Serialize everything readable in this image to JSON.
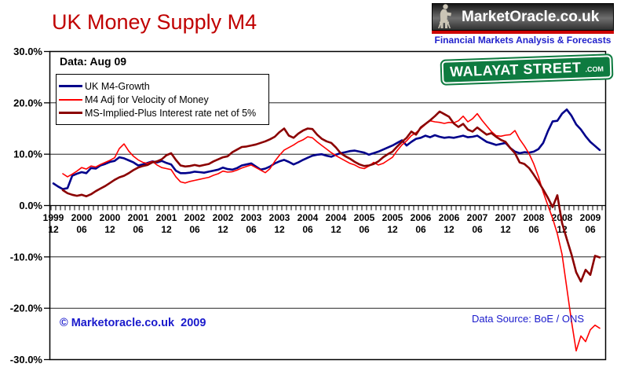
{
  "page": {
    "title": "UK Money Supply M4",
    "data_note": "Data: Aug 09",
    "copyright": "© Marketoracle.co.uk  2009",
    "data_source": "Data Source: BoE / ONS"
  },
  "logo": {
    "site": "MarketOracle.co.uk",
    "tagline": "Financial Markets Analysis & Forecasts",
    "figure_icon": "seated-oracle-statue-icon"
  },
  "street_sign": {
    "name": "WALAYAT STREET",
    "tld": ".com"
  },
  "colors": {
    "title": "#C00000",
    "logo_bar": "#CC0000",
    "tagline": "#2222CC",
    "sign_green": "#0E7B40",
    "link_blue": "#1A1ACC",
    "axis_black": "#000000"
  },
  "chart_data": {
    "type": "line",
    "title": "UK Money Supply M4",
    "xlabel": "",
    "ylabel": "",
    "x_start": "1999-12",
    "x_end": "2009-08",
    "x_interval": "monthly",
    "ylim": [
      -30,
      30
    ],
    "grid": "horizontal-every-10pct",
    "legend_position": "top-left",
    "y_ticks": [
      "30.0%",
      "20.0%",
      "10.0%",
      "0.0%",
      "-10.0%",
      "-20.0%",
      "-30.0%"
    ],
    "y_tick_values": [
      30,
      20,
      10,
      0,
      -10,
      -20,
      -30
    ],
    "x_tick_labels": [
      [
        "1999",
        "12"
      ],
      [
        "2000",
        "06"
      ],
      [
        "2000",
        "12"
      ],
      [
        "2001",
        "06"
      ],
      [
        "2001",
        "12"
      ],
      [
        "2002",
        "06"
      ],
      [
        "2002",
        "12"
      ],
      [
        "2003",
        "06"
      ],
      [
        "2003",
        "12"
      ],
      [
        "2004",
        "06"
      ],
      [
        "2004",
        "12"
      ],
      [
        "2005",
        "06"
      ],
      [
        "2005",
        "12"
      ],
      [
        "2006",
        "06"
      ],
      [
        "2006",
        "12"
      ],
      [
        "2007",
        "06"
      ],
      [
        "2007",
        "12"
      ],
      [
        "2008",
        "06"
      ],
      [
        "2008",
        "12"
      ],
      [
        "2009",
        "06"
      ]
    ],
    "series": [
      {
        "name": "UK M4-Growth",
        "color": "#00008B",
        "width": 2.6,
        "values": [
          4.3,
          3.7,
          3.2,
          3.4,
          5.8,
          6.2,
          6.5,
          6.3,
          7.3,
          7.2,
          7.8,
          8.1,
          8.5,
          8.7,
          9.4,
          9.2,
          8.8,
          8.4,
          7.8,
          8.0,
          8.3,
          8.6,
          8.4,
          8.7,
          8.3,
          8.0,
          6.8,
          6.3,
          6.3,
          6.4,
          6.6,
          6.5,
          6.4,
          6.6,
          6.8,
          7.0,
          7.4,
          7.1,
          7.0,
          7.3,
          7.8,
          8.0,
          8.2,
          7.6,
          7.0,
          7.2,
          7.6,
          8.2,
          8.6,
          8.9,
          8.5,
          8.0,
          8.4,
          8.9,
          9.3,
          9.7,
          9.9,
          10.0,
          9.7,
          9.5,
          9.9,
          10.2,
          10.4,
          10.6,
          10.7,
          10.5,
          10.3,
          9.9,
          10.2,
          10.5,
          10.9,
          11.3,
          11.7,
          12.2,
          12.7,
          11.7,
          12.4,
          13.0,
          13.2,
          13.6,
          13.3,
          13.7,
          13.4,
          13.2,
          13.3,
          13.2,
          13.4,
          13.6,
          13.3,
          13.4,
          13.6,
          13.0,
          12.4,
          12.1,
          11.8,
          12.0,
          12.2,
          11.2,
          10.5,
          10.2,
          10.4,
          10.3,
          10.5,
          11.0,
          12.2,
          14.5,
          16.4,
          16.5,
          17.9,
          18.7,
          17.5,
          15.8,
          14.8,
          13.5,
          12.4,
          11.6,
          10.8
        ]
      },
      {
        "name": "M4 Adj for Velocity of Money",
        "color": "#FF0000",
        "width": 1.6,
        "values": [
          null,
          null,
          6.2,
          5.6,
          6.1,
          6.7,
          7.4,
          7.1,
          7.7,
          7.5,
          8.0,
          8.4,
          8.8,
          9.3,
          11.1,
          12.0,
          10.6,
          9.6,
          8.9,
          8.4,
          8.2,
          8.6,
          7.9,
          7.4,
          7.2,
          7.0,
          5.6,
          4.6,
          4.4,
          4.7,
          4.9,
          5.1,
          5.3,
          5.5,
          5.9,
          6.2,
          6.7,
          6.5,
          6.6,
          6.9,
          7.3,
          7.6,
          7.9,
          7.4,
          6.9,
          6.4,
          7.2,
          8.6,
          9.8,
          10.8,
          11.3,
          11.8,
          12.4,
          12.8,
          13.4,
          13.2,
          12.4,
          11.7,
          11.0,
          10.3,
          9.7,
          9.2,
          8.7,
          8.2,
          7.9,
          7.4,
          7.2,
          7.7,
          8.4,
          7.9,
          8.2,
          8.8,
          9.4,
          10.7,
          11.8,
          12.6,
          13.6,
          14.2,
          15.0,
          15.8,
          16.5,
          16.3,
          16.2,
          16.0,
          16.2,
          16.1,
          16.5,
          17.4,
          16.3,
          16.9,
          17.9,
          16.6,
          15.5,
          14.4,
          13.6,
          13.5,
          13.7,
          13.8,
          14.6,
          12.9,
          11.6,
          10.1,
          8.1,
          5.6,
          2.6,
          0.0,
          -2.5,
          -5.5,
          -9.5,
          -16.0,
          -22.5,
          -28.3,
          -25.4,
          -26.5,
          -24.2,
          -23.3,
          -23.9
        ]
      },
      {
        "name": "MS-Implied-Plus Interest rate net of 5%",
        "color": "#8B0000",
        "width": 2.6,
        "values": [
          null,
          null,
          3.0,
          2.4,
          2.1,
          1.9,
          2.1,
          1.8,
          2.2,
          2.8,
          3.3,
          3.8,
          4.4,
          5.0,
          5.5,
          5.8,
          6.3,
          6.9,
          7.4,
          7.7,
          7.9,
          8.4,
          8.6,
          9.0,
          9.8,
          10.2,
          8.9,
          7.8,
          7.6,
          7.7,
          7.9,
          7.7,
          7.9,
          8.1,
          8.6,
          9.0,
          9.4,
          9.6,
          10.4,
          10.9,
          11.4,
          11.5,
          11.7,
          11.9,
          12.2,
          12.5,
          12.9,
          13.4,
          14.3,
          15.0,
          13.6,
          13.2,
          14.0,
          14.6,
          15.0,
          14.9,
          13.8,
          13.0,
          12.5,
          12.2,
          11.3,
          10.2,
          9.6,
          9.1,
          8.5,
          8.0,
          7.7,
          7.8,
          8.1,
          8.6,
          9.4,
          10.0,
          10.5,
          11.5,
          12.4,
          13.2,
          14.4,
          13.8,
          15.2,
          15.9,
          16.6,
          17.4,
          18.3,
          17.8,
          17.3,
          16.0,
          15.3,
          15.9,
          14.8,
          14.4,
          15.2,
          14.5,
          13.8,
          14.1,
          13.4,
          12.8,
          12.4,
          11.2,
          10.2,
          8.4,
          8.1,
          7.3,
          6.0,
          4.6,
          3.1,
          1.5,
          -0.3,
          2.0,
          -3.4,
          -6.5,
          -9.5,
          -13.0,
          -14.8,
          -12.5,
          -13.5,
          -9.8,
          -10.1
        ]
      }
    ]
  }
}
